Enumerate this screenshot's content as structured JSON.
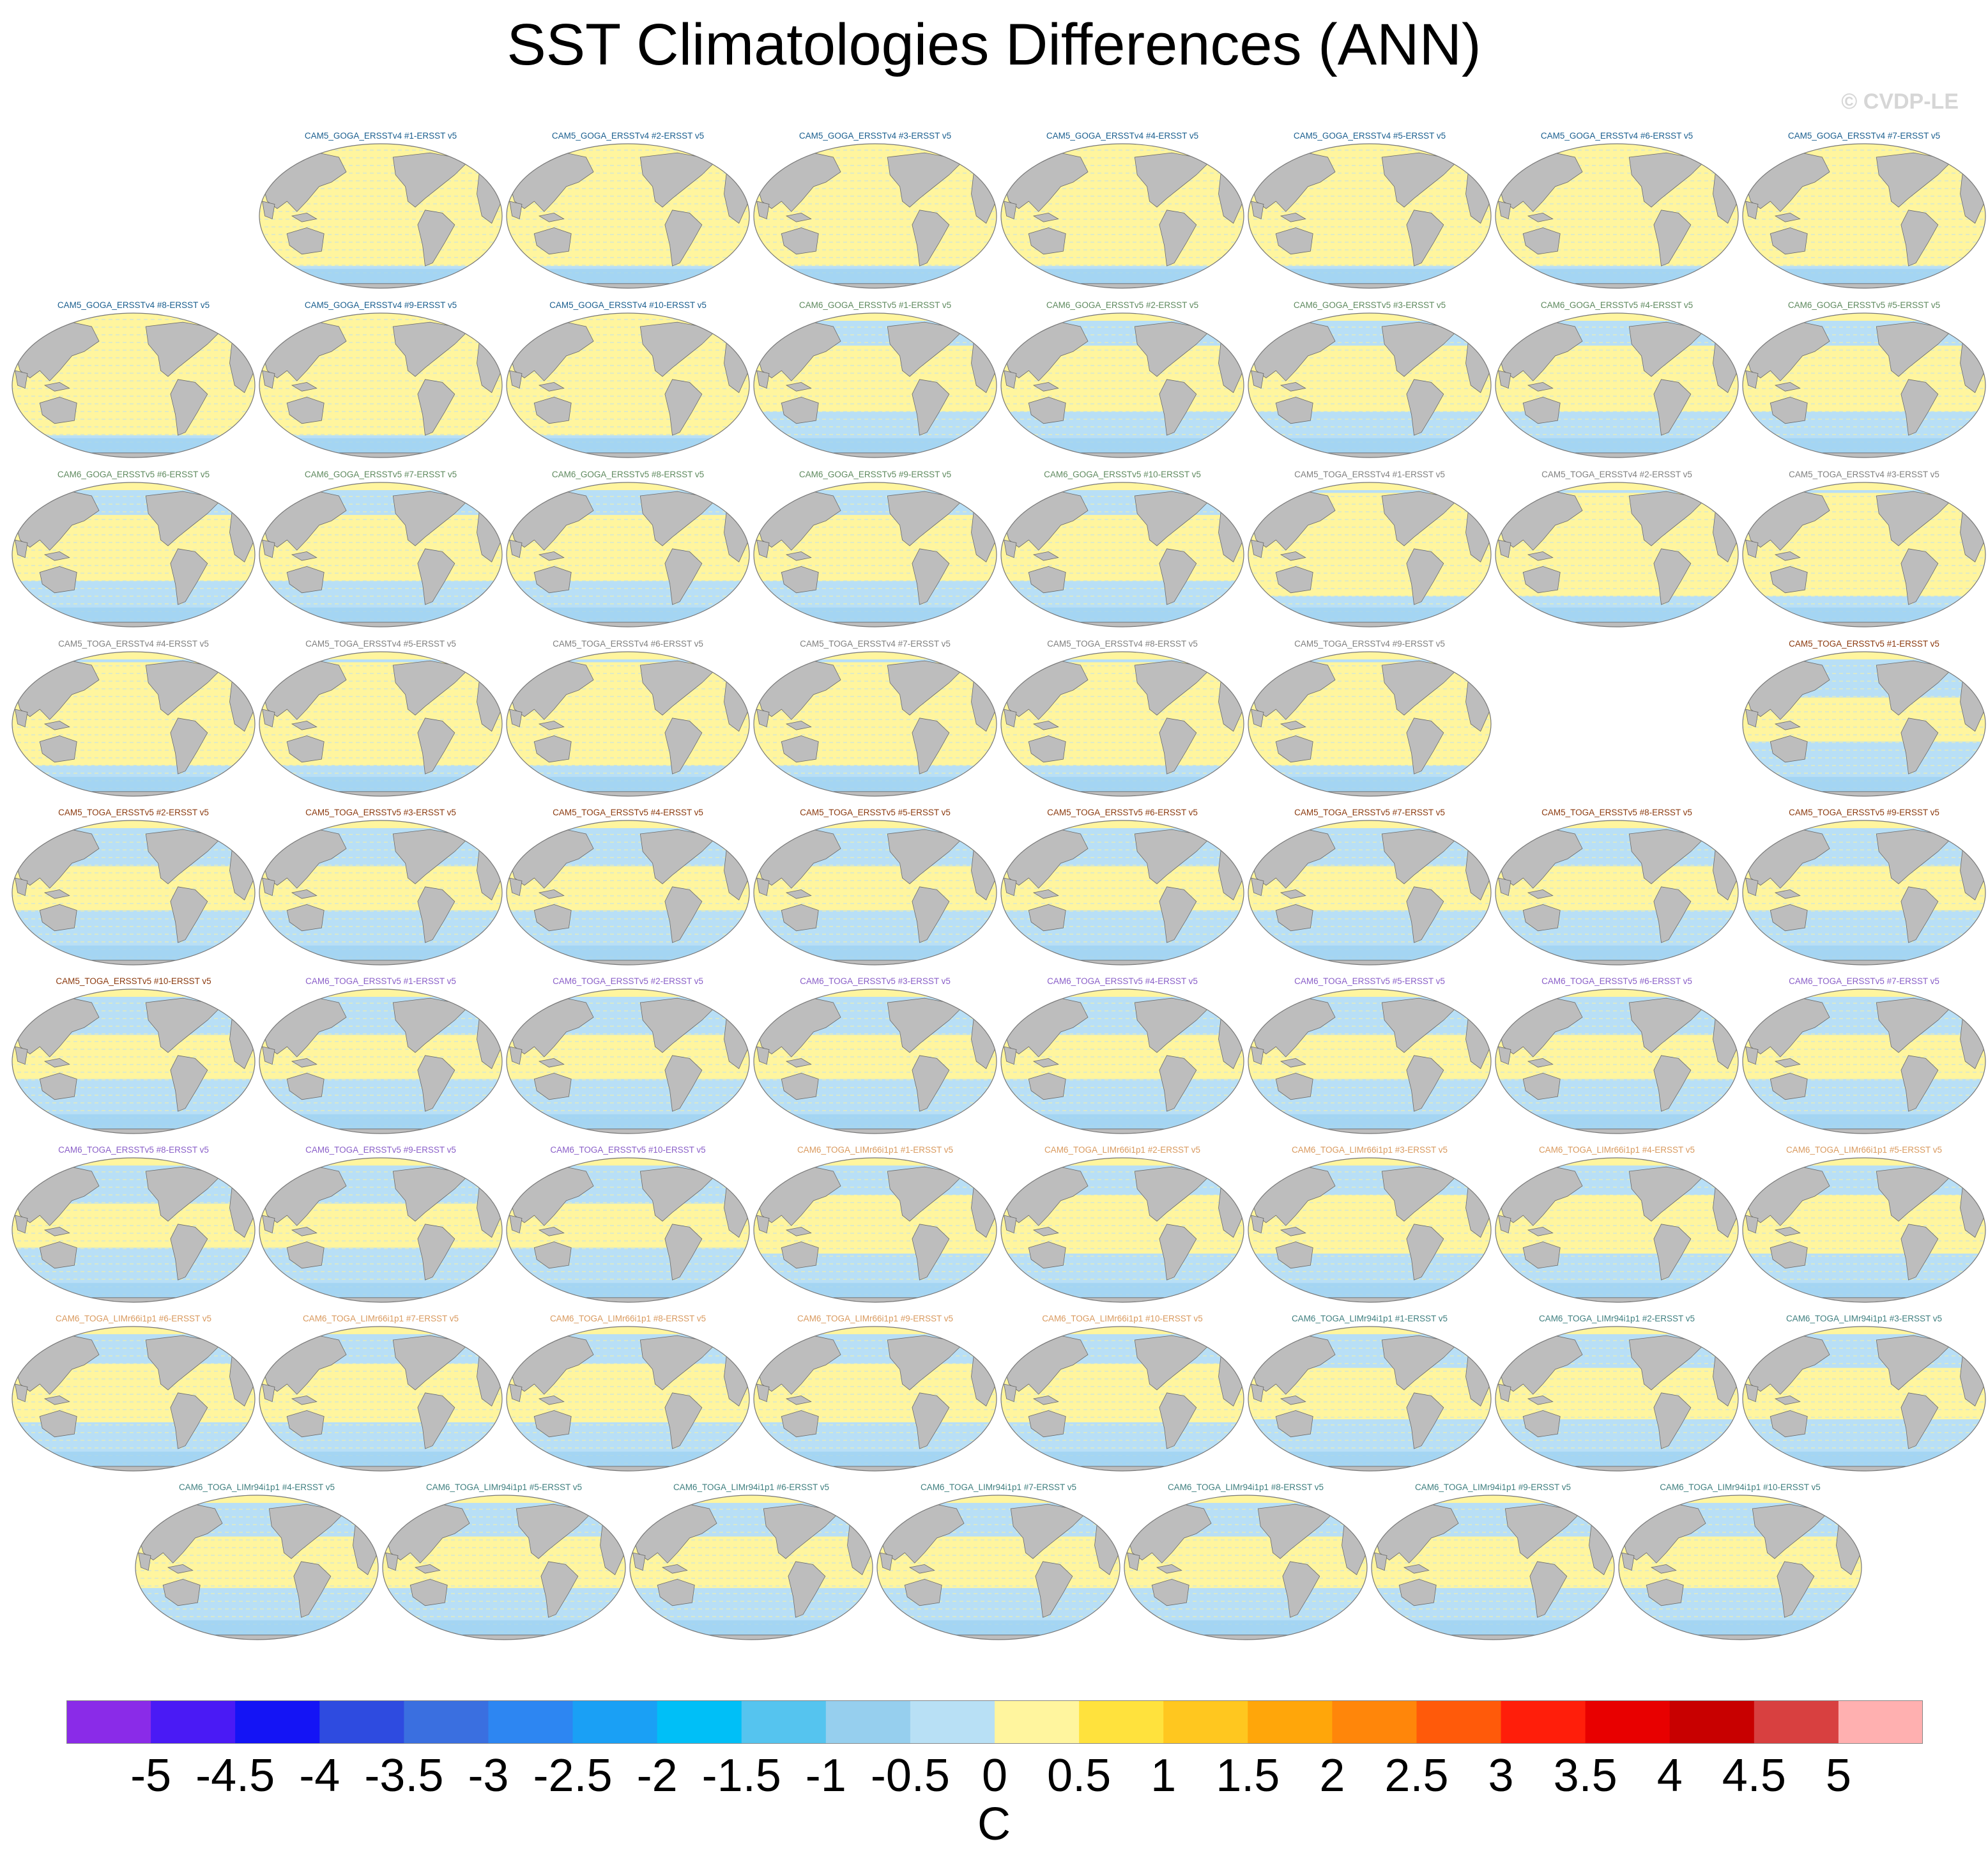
{
  "title": "SST Climatologies Differences (ANN)",
  "copyright": "© CVDP-LE",
  "colors": {
    "land": "#bdbdbd",
    "coast": "#6a6a6a",
    "warm_fill": "#fff59e",
    "cool_fill": "#b8dff6",
    "cooler_fill": "#9fd2f2"
  },
  "panels": [
    {
      "label": "CAM5_GOGA_ERSSTv4 #1-ERSST v5",
      "color": "#1b5f8f",
      "warm": 0.85
    },
    {
      "label": "CAM5_GOGA_ERSSTv4 #2-ERSST v5",
      "color": "#1b5f8f",
      "warm": 0.85
    },
    {
      "label": "CAM5_GOGA_ERSSTv4 #3-ERSST v5",
      "color": "#1b5f8f",
      "warm": 0.85
    },
    {
      "label": "CAM5_GOGA_ERSSTv4 #4-ERSST v5",
      "color": "#1b5f8f",
      "warm": 0.85
    },
    {
      "label": "CAM5_GOGA_ERSSTv4 #5-ERSST v5",
      "color": "#1b5f8f",
      "warm": 0.85
    },
    {
      "label": "CAM5_GOGA_ERSSTv4 #6-ERSST v5",
      "color": "#1b5f8f",
      "warm": 0.85
    },
    {
      "label": "CAM5_GOGA_ERSSTv4 #7-ERSST v5",
      "color": "#1b5f8f",
      "warm": 0.85
    },
    {
      "label": "CAM5_GOGA_ERSSTv4 #8-ERSST v5",
      "color": "#1b5f8f",
      "warm": 0.85
    },
    {
      "label": "CAM5_GOGA_ERSSTv4 #9-ERSST v5",
      "color": "#1b5f8f",
      "warm": 0.85
    },
    {
      "label": "CAM5_GOGA_ERSSTv4 #10-ERSST v5",
      "color": "#1b5f8f",
      "warm": 0.85
    },
    {
      "label": "CAM6_GOGA_ERSSTv5 #1-ERSST v5",
      "color": "#5f8a5f",
      "warm": 0.45
    },
    {
      "label": "CAM6_GOGA_ERSSTv5 #2-ERSST v5",
      "color": "#5f8a5f",
      "warm": 0.45
    },
    {
      "label": "CAM6_GOGA_ERSSTv5 #3-ERSST v5",
      "color": "#5f8a5f",
      "warm": 0.45
    },
    {
      "label": "CAM6_GOGA_ERSSTv5 #4-ERSST v5",
      "color": "#5f8a5f",
      "warm": 0.45
    },
    {
      "label": "CAM6_GOGA_ERSSTv5 #5-ERSST v5",
      "color": "#5f8a5f",
      "warm": 0.45
    },
    {
      "label": "CAM6_GOGA_ERSSTv5 #6-ERSST v5",
      "color": "#5f8a5f",
      "warm": 0.45
    },
    {
      "label": "CAM6_GOGA_ERSSTv5 #7-ERSST v5",
      "color": "#5f8a5f",
      "warm": 0.45
    },
    {
      "label": "CAM6_GOGA_ERSSTv5 #8-ERSST v5",
      "color": "#5f8a5f",
      "warm": 0.45
    },
    {
      "label": "CAM6_GOGA_ERSSTv5 #9-ERSST v5",
      "color": "#5f8a5f",
      "warm": 0.45
    },
    {
      "label": "CAM6_GOGA_ERSSTv5 #10-ERSST v5",
      "color": "#5f8a5f",
      "warm": 0.45
    },
    {
      "label": "CAM5_TOGA_ERSSTv4 #1-ERSST v5",
      "color": "#808080",
      "warm": 0.7
    },
    {
      "label": "CAM5_TOGA_ERSSTv4 #2-ERSST v5",
      "color": "#808080",
      "warm": 0.7
    },
    {
      "label": "CAM5_TOGA_ERSSTv4 #3-ERSST v5",
      "color": "#808080",
      "warm": 0.7
    },
    {
      "label": "CAM5_TOGA_ERSSTv4 #4-ERSST v5",
      "color": "#808080",
      "warm": 0.7
    },
    {
      "label": "CAM5_TOGA_ERSSTv4 #5-ERSST v5",
      "color": "#808080",
      "warm": 0.7
    },
    {
      "label": "CAM5_TOGA_ERSSTv4 #6-ERSST v5",
      "color": "#808080",
      "warm": 0.7
    },
    {
      "label": "CAM5_TOGA_ERSSTv4 #7-ERSST v5",
      "color": "#808080",
      "warm": 0.7
    },
    {
      "label": "CAM5_TOGA_ERSSTv4 #8-ERSST v5",
      "color": "#808080",
      "warm": 0.7
    },
    {
      "label": "CAM5_TOGA_ERSSTv4 #9-ERSST v5",
      "color": "#808080",
      "warm": 0.7
    },
    {
      "label": "CAM5_TOGA_ERSSTv5 #1-ERSST v5",
      "color": "#8b3a0f",
      "warm": 0.3
    },
    {
      "label": "CAM5_TOGA_ERSSTv5 #2-ERSST v5",
      "color": "#8b3a0f",
      "warm": 0.3
    },
    {
      "label": "CAM5_TOGA_ERSSTv5 #3-ERSST v5",
      "color": "#8b3a0f",
      "warm": 0.3
    },
    {
      "label": "CAM5_TOGA_ERSSTv5 #4-ERSST v5",
      "color": "#8b3a0f",
      "warm": 0.3
    },
    {
      "label": "CAM5_TOGA_ERSSTv5 #5-ERSST v5",
      "color": "#8b3a0f",
      "warm": 0.3
    },
    {
      "label": "CAM5_TOGA_ERSSTv5 #6-ERSST v5",
      "color": "#8b3a0f",
      "warm": 0.3
    },
    {
      "label": "CAM5_TOGA_ERSSTv5 #7-ERSST v5",
      "color": "#8b3a0f",
      "warm": 0.3
    },
    {
      "label": "CAM5_TOGA_ERSSTv5 #8-ERSST v5",
      "color": "#8b3a0f",
      "warm": 0.3
    },
    {
      "label": "CAM5_TOGA_ERSSTv5 #9-ERSST v5",
      "color": "#8b3a0f",
      "warm": 0.3
    },
    {
      "label": "CAM5_TOGA_ERSSTv5 #10-ERSST v5",
      "color": "#8b3a0f",
      "warm": 0.3
    },
    {
      "label": "CAM6_TOGA_ERSSTv5 #1-ERSST v5",
      "color": "#8a5fc8",
      "warm": 0.3
    },
    {
      "label": "CAM6_TOGA_ERSSTv5 #2-ERSST v5",
      "color": "#8a5fc8",
      "warm": 0.3
    },
    {
      "label": "CAM6_TOGA_ERSSTv5 #3-ERSST v5",
      "color": "#8a5fc8",
      "warm": 0.3
    },
    {
      "label": "CAM6_TOGA_ERSSTv5 #4-ERSST v5",
      "color": "#8a5fc8",
      "warm": 0.3
    },
    {
      "label": "CAM6_TOGA_ERSSTv5 #5-ERSST v5",
      "color": "#8a5fc8",
      "warm": 0.3
    },
    {
      "label": "CAM6_TOGA_ERSSTv5 #6-ERSST v5",
      "color": "#8a5fc8",
      "warm": 0.3
    },
    {
      "label": "CAM6_TOGA_ERSSTv5 #7-ERSST v5",
      "color": "#8a5fc8",
      "warm": 0.3
    },
    {
      "label": "CAM6_TOGA_ERSSTv5 #8-ERSST v5",
      "color": "#8a5fc8",
      "warm": 0.3
    },
    {
      "label": "CAM6_TOGA_ERSSTv5 #9-ERSST v5",
      "color": "#8a5fc8",
      "warm": 0.3
    },
    {
      "label": "CAM6_TOGA_ERSSTv5 #10-ERSST v5",
      "color": "#8a5fc8",
      "warm": 0.3
    },
    {
      "label": "CAM6_TOGA_LIMr66i1p1 #1-ERSST v5",
      "color": "#d99a5f",
      "warm": 0.4
    },
    {
      "label": "CAM6_TOGA_LIMr66i1p1 #2-ERSST v5",
      "color": "#d99a5f",
      "warm": 0.4
    },
    {
      "label": "CAM6_TOGA_LIMr66i1p1 #3-ERSST v5",
      "color": "#d99a5f",
      "warm": 0.4
    },
    {
      "label": "CAM6_TOGA_LIMr66i1p1 #4-ERSST v5",
      "color": "#d99a5f",
      "warm": 0.4
    },
    {
      "label": "CAM6_TOGA_LIMr66i1p1 #5-ERSST v5",
      "color": "#d99a5f",
      "warm": 0.4
    },
    {
      "label": "CAM6_TOGA_LIMr66i1p1 #6-ERSST v5",
      "color": "#d99a5f",
      "warm": 0.4
    },
    {
      "label": "CAM6_TOGA_LIMr66i1p1 #7-ERSST v5",
      "color": "#d99a5f",
      "warm": 0.4
    },
    {
      "label": "CAM6_TOGA_LIMr66i1p1 #8-ERSST v5",
      "color": "#d99a5f",
      "warm": 0.4
    },
    {
      "label": "CAM6_TOGA_LIMr66i1p1 #9-ERSST v5",
      "color": "#d99a5f",
      "warm": 0.4
    },
    {
      "label": "CAM6_TOGA_LIMr66i1p1 #10-ERSST v5",
      "color": "#d99a5f",
      "warm": 0.4
    },
    {
      "label": "CAM6_TOGA_LIMr94i1p1 #1-ERSST v5",
      "color": "#3f7f7f",
      "warm": 0.35
    },
    {
      "label": "CAM6_TOGA_LIMr94i1p1 #2-ERSST v5",
      "color": "#3f7f7f",
      "warm": 0.35
    },
    {
      "label": "CAM6_TOGA_LIMr94i1p1 #3-ERSST v5",
      "color": "#3f7f7f",
      "warm": 0.35
    },
    {
      "label": "CAM6_TOGA_LIMr94i1p1 #4-ERSST v5",
      "color": "#3f7f7f",
      "warm": 0.35
    },
    {
      "label": "CAM6_TOGA_LIMr94i1p1 #5-ERSST v5",
      "color": "#3f7f7f",
      "warm": 0.35
    },
    {
      "label": "CAM6_TOGA_LIMr94i1p1 #6-ERSST v5",
      "color": "#3f7f7f",
      "warm": 0.35
    },
    {
      "label": "CAM6_TOGA_LIMr94i1p1 #7-ERSST v5",
      "color": "#3f7f7f",
      "warm": 0.35
    },
    {
      "label": "CAM6_TOGA_LIMr94i1p1 #8-ERSST v5",
      "color": "#3f7f7f",
      "warm": 0.35
    },
    {
      "label": "CAM6_TOGA_LIMr94i1p1 #9-ERSST v5",
      "color": "#3f7f7f",
      "warm": 0.35
    },
    {
      "label": "CAM6_TOGA_LIMr94i1p1 #10-ERSST v5",
      "color": "#3f7f7f",
      "warm": 0.35
    }
  ],
  "colorbar": {
    "colors": [
      "#8a2be8",
      "#4a1af5",
      "#1414f5",
      "#2e4be0",
      "#3a6fe0",
      "#2d86f2",
      "#1aa0f5",
      "#00bff7",
      "#55c4ef",
      "#96cfee",
      "#b8e0f5",
      "#fff59e",
      "#ffe23d",
      "#ffc71f",
      "#ffa60a",
      "#ff860a",
      "#ff5a0a",
      "#ff1e0a",
      "#e80000",
      "#c80000",
      "#d84040",
      "#ffb0b0"
    ],
    "ticks": [
      "-5",
      "-4.5",
      "-4",
      "-3.5",
      "-3",
      "-2.5",
      "-2",
      "-1.5",
      "-1",
      "-0.5",
      "0",
      "0.5",
      "1",
      "1.5",
      "2",
      "2.5",
      "3",
      "3.5",
      "4",
      "4.5",
      "5"
    ],
    "unit": "C"
  }
}
